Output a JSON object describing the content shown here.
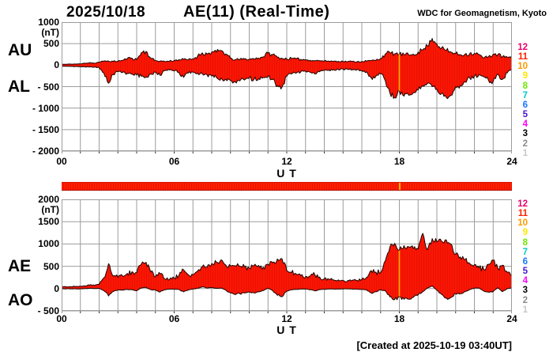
{
  "header": {
    "date": "2025/10/18",
    "title": "AE(11) (Real-Time)",
    "source": "WDC for Geomagnetism, Kyoto"
  },
  "footer": {
    "created": "[Created at 2025-10-19 03:40UT]"
  },
  "colors": {
    "fill": "#fb1505",
    "fill_stripe": "#e81400",
    "outline": "#1c0400",
    "grid": "#9c9c9c",
    "gap_line": "#ffb400",
    "bar": "#ff2000",
    "text": "#000000"
  },
  "station_legend": {
    "values": [
      "12",
      "11",
      "10",
      "9",
      "8",
      "7",
      "6",
      "5",
      "4",
      "3",
      "2",
      "1"
    ],
    "colors": [
      "#e8006a",
      "#ff2000",
      "#ff9900",
      "#ffe500",
      "#6ee600",
      "#00c8c8",
      "#1577ff",
      "#4418cc",
      "#ff00ff",
      "#000000",
      "#8c8c8c",
      "#c8c8c8"
    ]
  },
  "station_bar": {
    "station_count_color": "#ff2000",
    "gap_marker_hour": 18
  },
  "chart_data": [
    {
      "type": "area",
      "title": "AU / AL envelope",
      "unit": "(nT)",
      "xlabel": "U T",
      "x_hours_step": 0.25,
      "xticks": [
        0,
        6,
        12,
        18,
        24
      ],
      "xtick_labels": [
        "00",
        "06",
        "12",
        "18",
        "24"
      ],
      "ylim": [
        -2000,
        1000
      ],
      "ytick_step": 500,
      "ytick_values": [
        1000,
        500,
        0,
        -500,
        -1000,
        -1500,
        -2000
      ],
      "ytick_labels": [
        "1000",
        "500",
        "0",
        "- 500",
        "- 1000",
        "- 1500",
        "- 2000"
      ],
      "gap_marker_hour": 18,
      "series": [
        {
          "name": "AU",
          "values": [
            20,
            20,
            25,
            25,
            30,
            45,
            60,
            45,
            70,
            90,
            95,
            85,
            95,
            110,
            155,
            165,
            130,
            290,
            320,
            160,
            105,
            95,
            85,
            95,
            105,
            125,
            135,
            125,
            145,
            210,
            285,
            255,
            305,
            300,
            340,
            260,
            155,
            125,
            135,
            145,
            135,
            150,
            165,
            195,
            280,
            245,
            185,
            155,
            145,
            155,
            145,
            135,
            125,
            115,
            105,
            105,
            95,
            95,
            90,
            90,
            85,
            85,
            85,
            80,
            85,
            95,
            105,
            115,
            155,
            260,
            285,
            265,
            255,
            245,
            235,
            255,
            305,
            355,
            450,
            620,
            490,
            400,
            340,
            300,
            270,
            240,
            255,
            265,
            275,
            245,
            165,
            195,
            255,
            245,
            195,
            185,
            155
          ]
        },
        {
          "name": "AL",
          "values": [
            -25,
            -25,
            -30,
            -30,
            -35,
            -40,
            -45,
            -45,
            -60,
            -180,
            -420,
            -220,
            -150,
            -170,
            -190,
            -210,
            -230,
            -260,
            -270,
            -210,
            -160,
            -240,
            -130,
            -115,
            -135,
            -165,
            -285,
            -185,
            -165,
            -185,
            -205,
            -225,
            -255,
            -285,
            -305,
            -325,
            -355,
            -390,
            -365,
            -345,
            -305,
            -335,
            -315,
            -285,
            -265,
            -335,
            -480,
            -510,
            -260,
            -205,
            -185,
            -155,
            -145,
            -165,
            -205,
            -155,
            -125,
            -115,
            -105,
            -105,
            -95,
            -95,
            -105,
            -105,
            -125,
            -155,
            -300,
            -255,
            -205,
            -360,
            -650,
            -750,
            -600,
            -720,
            -700,
            -640,
            -580,
            -480,
            -420,
            -500,
            -560,
            -660,
            -750,
            -700,
            -500,
            -470,
            -390,
            -300,
            -260,
            -220,
            -270,
            -350,
            -380,
            -210,
            -330,
            -180,
            -120
          ]
        }
      ]
    },
    {
      "type": "area",
      "title": "AE / AO envelope",
      "unit": "(nT)",
      "xlabel": "U T",
      "x_hours_step": 0.25,
      "xticks": [
        0,
        6,
        12,
        18,
        24
      ],
      "xtick_labels": [
        "00",
        "06",
        "12",
        "18",
        "24"
      ],
      "ylim": [
        -500,
        2000
      ],
      "ytick_step": 500,
      "ytick_values": [
        2000,
        1500,
        1000,
        500,
        0,
        -500
      ],
      "ytick_labels": [
        "2000",
        "1500",
        "1000",
        "500",
        "0",
        "- 500"
      ],
      "gap_marker_hour": 18,
      "series": [
        {
          "name": "AE",
          "values": [
            40,
            40,
            45,
            45,
            50,
            60,
            80,
            70,
            90,
            240,
            560,
            280,
            250,
            280,
            340,
            380,
            360,
            550,
            590,
            370,
            265,
            335,
            215,
            210,
            240,
            290,
            420,
            310,
            310,
            395,
            490,
            480,
            560,
            590,
            645,
            530,
            510,
            515,
            500,
            490,
            460,
            520,
            520,
            480,
            545,
            580,
            665,
            665,
            405,
            360,
            330,
            290,
            270,
            280,
            310,
            260,
            220,
            210,
            195,
            195,
            180,
            180,
            190,
            185,
            210,
            250,
            405,
            370,
            360,
            620,
            935,
            1015,
            855,
            965,
            935,
            895,
            885,
            1240,
            870,
            1120,
            1050,
            1060,
            1090,
            1000,
            770,
            710,
            645,
            565,
            535,
            465,
            435,
            545,
            635,
            455,
            525,
            365,
            275
          ]
        },
        {
          "name": "AO",
          "values": [
            -5,
            -5,
            -5,
            -5,
            -5,
            0,
            5,
            0,
            5,
            -45,
            -165,
            -70,
            -30,
            -30,
            -20,
            -25,
            -50,
            15,
            25,
            -25,
            -30,
            -75,
            -25,
            -10,
            -15,
            -20,
            -75,
            -30,
            -10,
            10,
            40,
            15,
            25,
            5,
            15,
            -35,
            -100,
            -135,
            -115,
            -100,
            -75,
            -95,
            -75,
            -45,
            10,
            -45,
            -150,
            -180,
            -60,
            -25,
            -20,
            -10,
            -10,
            -25,
            -50,
            -25,
            -15,
            -10,
            -10,
            -10,
            -5,
            -5,
            -10,
            -15,
            -20,
            -30,
            -100,
            -70,
            -25,
            -50,
            -185,
            -245,
            -175,
            -240,
            -235,
            -195,
            -140,
            -65,
            15,
            60,
            -35,
            -130,
            -205,
            -200,
            -115,
            -115,
            -70,
            -20,
            10,
            15,
            -55,
            -80,
            -65,
            20,
            -70,
            0,
            20
          ]
        }
      ]
    }
  ]
}
